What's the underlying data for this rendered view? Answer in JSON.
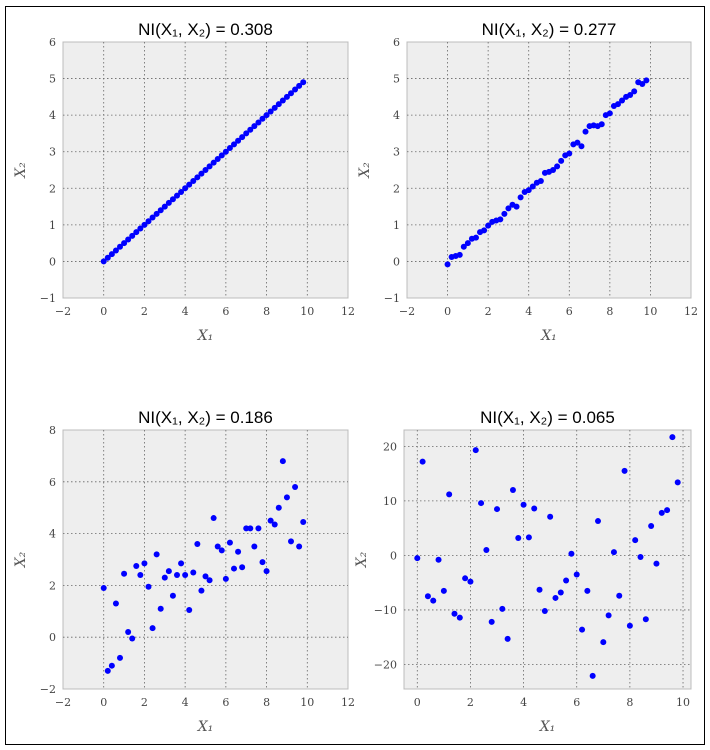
{
  "chart_data": [
    {
      "type": "scatter",
      "title": "NI(X₁, X₂) = 0.308",
      "xlabel": "X₁",
      "ylabel": "X₂",
      "xlim": [
        -2,
        12
      ],
      "ylim": [
        -1,
        6
      ],
      "xticks": [
        -2,
        0,
        2,
        4,
        6,
        8,
        10,
        12
      ],
      "yticks": [
        -1,
        0,
        1,
        2,
        3,
        4,
        5,
        6
      ],
      "xtick_labels": [
        "−2",
        "0",
        "2",
        "4",
        "6",
        "8",
        "10",
        "12"
      ],
      "ytick_labels": [
        "−1",
        "0",
        "1",
        "2",
        "3",
        "4",
        "5",
        "6"
      ],
      "grid": true,
      "points": [
        [
          0,
          0
        ],
        [
          0.2,
          0.1
        ],
        [
          0.4,
          0.2
        ],
        [
          0.6,
          0.3
        ],
        [
          0.8,
          0.4
        ],
        [
          1,
          0.5
        ],
        [
          1.2,
          0.6
        ],
        [
          1.4,
          0.7
        ],
        [
          1.6,
          0.8
        ],
        [
          1.8,
          0.9
        ],
        [
          2,
          1
        ],
        [
          2.2,
          1.1
        ],
        [
          2.4,
          1.2
        ],
        [
          2.6,
          1.3
        ],
        [
          2.8,
          1.4
        ],
        [
          3,
          1.5
        ],
        [
          3.2,
          1.6
        ],
        [
          3.4,
          1.7
        ],
        [
          3.6,
          1.8
        ],
        [
          3.8,
          1.9
        ],
        [
          4,
          2
        ],
        [
          4.2,
          2.1
        ],
        [
          4.4,
          2.2
        ],
        [
          4.6,
          2.3
        ],
        [
          4.8,
          2.4
        ],
        [
          5,
          2.5
        ],
        [
          5.2,
          2.6
        ],
        [
          5.4,
          2.7
        ],
        [
          5.6,
          2.8
        ],
        [
          5.8,
          2.9
        ],
        [
          6,
          3
        ],
        [
          6.2,
          3.1
        ],
        [
          6.4,
          3.2
        ],
        [
          6.6,
          3.3
        ],
        [
          6.8,
          3.4
        ],
        [
          7,
          3.5
        ],
        [
          7.2,
          3.6
        ],
        [
          7.4,
          3.7
        ],
        [
          7.6,
          3.8
        ],
        [
          7.8,
          3.9
        ],
        [
          8,
          4
        ],
        [
          8.2,
          4.1
        ],
        [
          8.4,
          4.2
        ],
        [
          8.6,
          4.3
        ],
        [
          8.8,
          4.4
        ],
        [
          9,
          4.5
        ],
        [
          9.2,
          4.6
        ],
        [
          9.4,
          4.7
        ],
        [
          9.6,
          4.8
        ],
        [
          9.8,
          4.9
        ]
      ]
    },
    {
      "type": "scatter",
      "title": "NI(X₁, X₂) = 0.277",
      "xlabel": "X₁",
      "ylabel": "X₂",
      "xlim": [
        -2,
        12
      ],
      "ylim": [
        -1,
        6
      ],
      "xticks": [
        -2,
        0,
        2,
        4,
        6,
        8,
        10,
        12
      ],
      "yticks": [
        -1,
        0,
        1,
        2,
        3,
        4,
        5,
        6
      ],
      "xtick_labels": [
        "−2",
        "0",
        "2",
        "4",
        "6",
        "8",
        "10",
        "12"
      ],
      "ytick_labels": [
        "−1",
        "0",
        "1",
        "2",
        "3",
        "4",
        "5",
        "6"
      ],
      "grid": true,
      "points": [
        [
          0,
          -0.08
        ],
        [
          0.2,
          0.12
        ],
        [
          0.4,
          0.15
        ],
        [
          0.6,
          0.18
        ],
        [
          0.8,
          0.4
        ],
        [
          1,
          0.5
        ],
        [
          1.2,
          0.62
        ],
        [
          1.4,
          0.65
        ],
        [
          1.6,
          0.8
        ],
        [
          1.8,
          0.85
        ],
        [
          2,
          0.98
        ],
        [
          2.2,
          1.08
        ],
        [
          2.4,
          1.12
        ],
        [
          2.6,
          1.15
        ],
        [
          2.8,
          1.3
        ],
        [
          3,
          1.45
        ],
        [
          3.2,
          1.55
        ],
        [
          3.4,
          1.5
        ],
        [
          3.6,
          1.75
        ],
        [
          3.8,
          1.9
        ],
        [
          4,
          1.95
        ],
        [
          4.2,
          2.05
        ],
        [
          4.4,
          2.15
        ],
        [
          4.6,
          2.2
        ],
        [
          4.8,
          2.42
        ],
        [
          5,
          2.45
        ],
        [
          5.2,
          2.5
        ],
        [
          5.4,
          2.6
        ],
        [
          5.6,
          2.75
        ],
        [
          5.8,
          2.9
        ],
        [
          6,
          2.95
        ],
        [
          6.2,
          3.2
        ],
        [
          6.4,
          3.25
        ],
        [
          6.6,
          3.15
        ],
        [
          6.8,
          3.55
        ],
        [
          7,
          3.7
        ],
        [
          7.2,
          3.72
        ],
        [
          7.4,
          3.7
        ],
        [
          7.6,
          3.75
        ],
        [
          7.8,
          4
        ],
        [
          8,
          4.05
        ],
        [
          8.2,
          4.25
        ],
        [
          8.4,
          4.3
        ],
        [
          8.6,
          4.4
        ],
        [
          8.8,
          4.5
        ],
        [
          9,
          4.55
        ],
        [
          9.2,
          4.65
        ],
        [
          9.4,
          4.9
        ],
        [
          9.6,
          4.85
        ],
        [
          9.8,
          4.95
        ]
      ]
    },
    {
      "type": "scatter",
      "title": "NI(X₁, X₂) = 0.186",
      "xlabel": "X₁",
      "ylabel": "X₂",
      "xlim": [
        -2,
        12
      ],
      "ylim": [
        -2,
        8
      ],
      "xticks": [
        -2,
        0,
        2,
        4,
        6,
        8,
        10,
        12
      ],
      "yticks": [
        -2,
        0,
        2,
        4,
        6,
        8
      ],
      "xtick_labels": [
        "−2",
        "0",
        "2",
        "4",
        "6",
        "8",
        "10",
        "12"
      ],
      "ytick_labels": [
        "−2",
        "0",
        "2",
        "4",
        "6",
        "8"
      ],
      "grid": true,
      "points": [
        [
          0,
          1.9
        ],
        [
          0.2,
          -1.3
        ],
        [
          0.4,
          -1.1
        ],
        [
          0.6,
          1.3
        ],
        [
          0.8,
          -0.8
        ],
        [
          1,
          2.45
        ],
        [
          1.2,
          0.2
        ],
        [
          1.4,
          -0.05
        ],
        [
          1.6,
          2.75
        ],
        [
          1.8,
          2.4
        ],
        [
          2,
          2.85
        ],
        [
          2.2,
          1.95
        ],
        [
          2.4,
          0.35
        ],
        [
          2.6,
          3.2
        ],
        [
          2.8,
          1.1
        ],
        [
          3,
          2.3
        ],
        [
          3.2,
          2.55
        ],
        [
          3.4,
          1.6
        ],
        [
          3.6,
          2.4
        ],
        [
          3.8,
          2.85
        ],
        [
          4,
          2.4
        ],
        [
          4.2,
          1.05
        ],
        [
          4.4,
          2.5
        ],
        [
          4.6,
          3.6
        ],
        [
          4.8,
          1.8
        ],
        [
          5,
          2.35
        ],
        [
          5.2,
          2.2
        ],
        [
          5.4,
          4.6
        ],
        [
          5.6,
          3.5
        ],
        [
          5.8,
          3.35
        ],
        [
          6,
          2.25
        ],
        [
          6.2,
          3.65
        ],
        [
          6.4,
          2.65
        ],
        [
          6.6,
          3.3
        ],
        [
          6.8,
          2.7
        ],
        [
          7,
          4.2
        ],
        [
          7.2,
          4.2
        ],
        [
          7.4,
          3.5
        ],
        [
          7.6,
          4.2
        ],
        [
          7.8,
          2.9
        ],
        [
          8,
          2.55
        ],
        [
          8.2,
          4.5
        ],
        [
          8.4,
          4.35
        ],
        [
          8.6,
          5
        ],
        [
          8.8,
          6.8
        ],
        [
          9,
          5.4
        ],
        [
          9.2,
          3.7
        ],
        [
          9.4,
          5.8
        ],
        [
          9.6,
          3.5
        ],
        [
          9.8,
          4.45
        ]
      ]
    },
    {
      "type": "scatter",
      "title": "NI(X₁, X₂) = 0.065",
      "xlabel": "X₁",
      "ylabel": "X₂",
      "xlim": [
        -0.5,
        10.3
      ],
      "ylim": [
        -24.5,
        23
      ],
      "xticks": [
        0,
        2,
        4,
        6,
        8,
        10
      ],
      "yticks": [
        -20,
        -10,
        0,
        10,
        20
      ],
      "xtick_labels": [
        "0",
        "2",
        "4",
        "6",
        "8",
        "10"
      ],
      "ytick_labels": [
        "−20",
        "−10",
        "0",
        "10",
        "20"
      ],
      "grid": true,
      "points": [
        [
          0,
          -0.5
        ],
        [
          0.2,
          17.2
        ],
        [
          0.4,
          -7.5
        ],
        [
          0.6,
          -8.3
        ],
        [
          0.8,
          -0.8
        ],
        [
          1,
          -6.5
        ],
        [
          1.2,
          11.2
        ],
        [
          1.4,
          -10.7
        ],
        [
          1.6,
          -11.4
        ],
        [
          1.8,
          -4.2
        ],
        [
          2,
          -4.8
        ],
        [
          2.2,
          19.3
        ],
        [
          2.4,
          9.6
        ],
        [
          2.6,
          1
        ],
        [
          2.8,
          -12.2
        ],
        [
          3,
          8.5
        ],
        [
          3.2,
          -9.8
        ],
        [
          3.4,
          -15.3
        ],
        [
          3.6,
          12
        ],
        [
          3.8,
          3.2
        ],
        [
          4,
          9.3
        ],
        [
          4.2,
          3.3
        ],
        [
          4.4,
          8.6
        ],
        [
          4.6,
          -6.3
        ],
        [
          4.8,
          -10.2
        ],
        [
          5,
          7.1
        ],
        [
          5.2,
          -7.8
        ],
        [
          5.4,
          -6.8
        ],
        [
          5.6,
          -4.6
        ],
        [
          5.8,
          0.3
        ],
        [
          6,
          -3.5
        ],
        [
          6.2,
          -13.6
        ],
        [
          6.4,
          -6.5
        ],
        [
          6.6,
          -22.1
        ],
        [
          6.8,
          6.3
        ],
        [
          7,
          -15.9
        ],
        [
          7.2,
          -11
        ],
        [
          7.4,
          0.6
        ],
        [
          7.6,
          -7.4
        ],
        [
          7.8,
          15.5
        ],
        [
          8,
          -12.9
        ],
        [
          8.2,
          2.8
        ],
        [
          8.4,
          -0.3
        ],
        [
          8.6,
          -11.7
        ],
        [
          8.8,
          5.4
        ],
        [
          9,
          -1.5
        ],
        [
          9.2,
          7.8
        ],
        [
          9.4,
          8.3
        ],
        [
          9.6,
          21.7
        ],
        [
          9.8,
          13.4
        ]
      ]
    }
  ]
}
